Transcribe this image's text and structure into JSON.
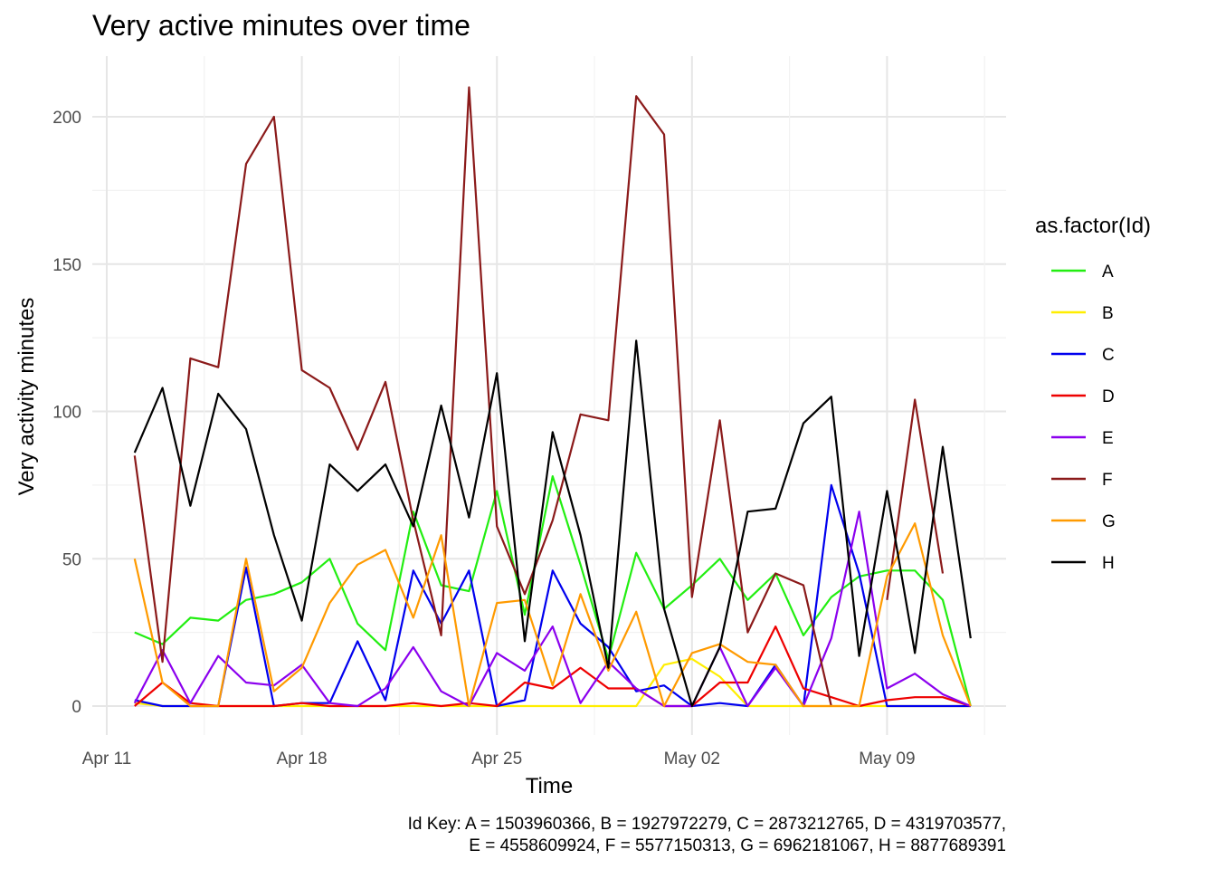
{
  "chart_data": {
    "type": "line",
    "title": "Very active minutes over time",
    "xlabel": "Time",
    "ylabel": "Very activity minutes",
    "x_ticks": [
      "Apr 11",
      "Apr 18",
      "Apr 25",
      "May 02",
      "May 09"
    ],
    "y_ticks": [
      "0",
      "50",
      "100",
      "150",
      "200"
    ],
    "ylim": [
      -10,
      220
    ],
    "x_start_date": "2016-04-12",
    "x": [
      "Apr 12",
      "Apr 13",
      "Apr 14",
      "Apr 15",
      "Apr 16",
      "Apr 17",
      "Apr 18",
      "Apr 19",
      "Apr 20",
      "Apr 21",
      "Apr 22",
      "Apr 23",
      "Apr 24",
      "Apr 25",
      "Apr 26",
      "Apr 27",
      "Apr 28",
      "Apr 29",
      "Apr 30",
      "May 01",
      "May 02",
      "May 03",
      "May 04",
      "May 05",
      "May 06",
      "May 07",
      "May 08",
      "May 09",
      "May 10",
      "May 11",
      "May 12"
    ],
    "legend_title": "as.factor(Id)",
    "legend_position": "right",
    "grid": true,
    "series": [
      {
        "name": "A",
        "color": "#22ee11",
        "values": [
          25,
          21,
          30,
          29,
          36,
          38,
          42,
          50,
          28,
          19,
          66,
          41,
          39,
          73,
          31,
          78,
          48,
          16,
          52,
          33,
          41,
          50,
          36,
          45,
          24,
          37,
          44,
          46,
          46,
          36,
          0
        ]
      },
      {
        "name": "B",
        "color": "#ffee00",
        "values": [
          1,
          0,
          0,
          0,
          0,
          0,
          0,
          0,
          0,
          0,
          0,
          0,
          0,
          0,
          0,
          0,
          0,
          0,
          0,
          14,
          16,
          10,
          0,
          0,
          0,
          0,
          0,
          0,
          0,
          0,
          0
        ]
      },
      {
        "name": "C",
        "color": "#0000ee",
        "values": [
          2,
          0,
          0,
          0,
          47,
          0,
          1,
          1,
          22,
          2,
          46,
          28,
          46,
          0,
          2,
          46,
          28,
          20,
          5,
          7,
          0,
          1,
          0,
          14,
          0,
          75,
          45,
          0,
          0,
          0,
          0
        ]
      },
      {
        "name": "D",
        "color": "#ee0000",
        "values": [
          0,
          8,
          1,
          0,
          0,
          0,
          1,
          0,
          0,
          0,
          1,
          0,
          1,
          0,
          8,
          6,
          13,
          6,
          6,
          0,
          0,
          8,
          8,
          27,
          6,
          3,
          0,
          2,
          3,
          3,
          0
        ]
      },
      {
        "name": "E",
        "color": "#8b00ee",
        "values": [
          1,
          19,
          1,
          17,
          8,
          7,
          14,
          1,
          0,
          6,
          20,
          5,
          0,
          18,
          12,
          27,
          1,
          15,
          6,
          0,
          0,
          20,
          0,
          13,
          0,
          23,
          66,
          6,
          11,
          4,
          0
        ]
      },
      {
        "name": "F",
        "color": "#8b1a1a",
        "values": [
          85,
          15,
          118,
          115,
          184,
          200,
          114,
          108,
          87,
          110,
          63,
          24,
          210,
          61,
          38,
          63,
          99,
          97,
          207,
          194,
          37,
          97,
          25,
          45,
          41,
          0,
          null,
          36,
          104,
          45,
          null
        ]
      },
      {
        "name": "G",
        "color": "#ff9a00",
        "values": [
          50,
          8,
          0,
          0,
          50,
          5,
          13,
          35,
          48,
          53,
          30,
          58,
          0,
          35,
          36,
          7,
          38,
          12,
          32,
          0,
          18,
          21,
          15,
          14,
          0,
          0,
          0,
          44,
          62,
          24,
          0
        ]
      },
      {
        "name": "H",
        "color": "#000000",
        "values": [
          86,
          108,
          68,
          106,
          94,
          58,
          29,
          82,
          73,
          82,
          61,
          102,
          64,
          113,
          22,
          93,
          58,
          13,
          124,
          33,
          0,
          20,
          66,
          67,
          96,
          105,
          17,
          73,
          18,
          88,
          23
        ]
      }
    ]
  },
  "caption_lines": [
    "Id Key: A = 1503960366, B = 1927972279, C = 2873212765, D = 4319703577,",
    "E = 4558609924, F = 5577150313, G = 6962181067, H = 8877689391"
  ]
}
